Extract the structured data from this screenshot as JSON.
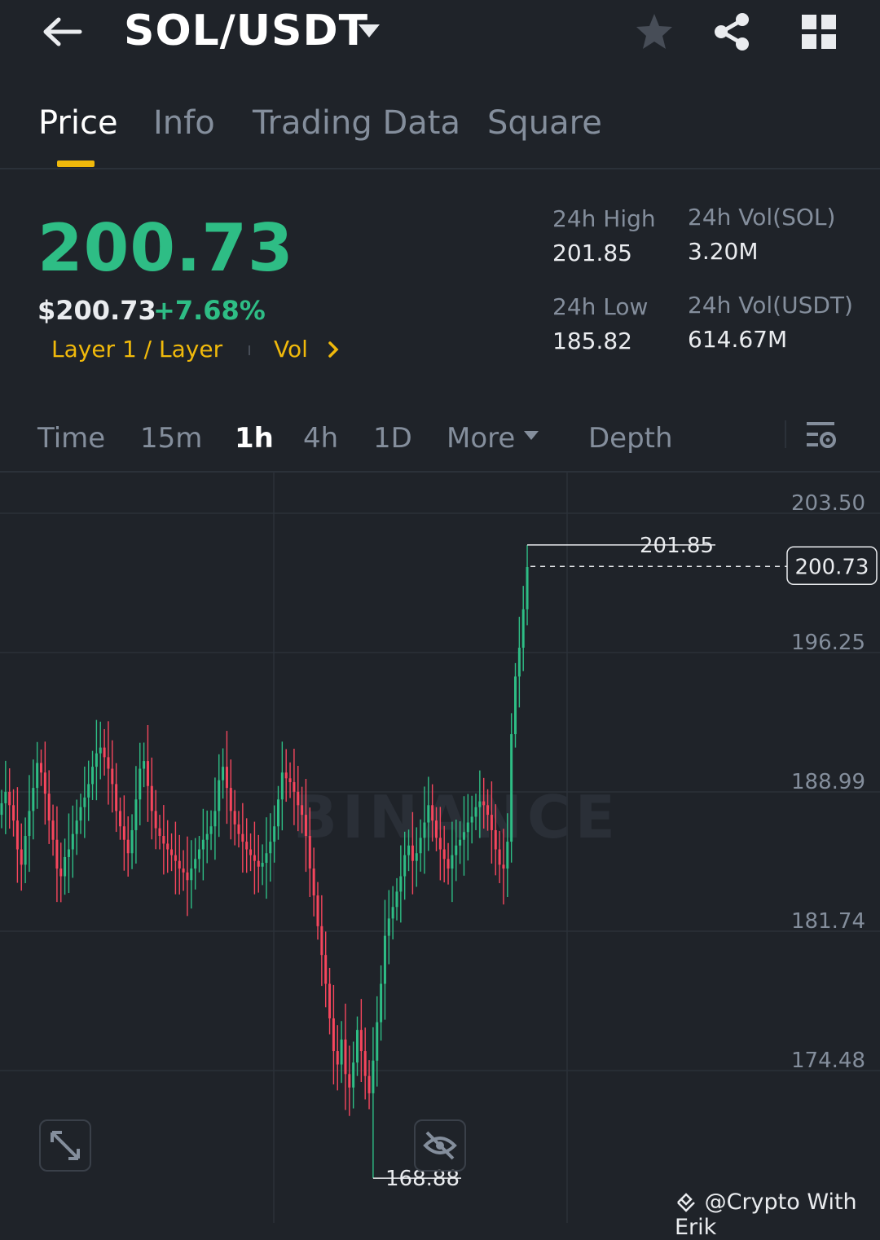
{
  "header": {
    "pair": "SOL/USDT",
    "icons": [
      "back-arrow-icon",
      "caret-down-icon",
      "star-icon",
      "share-icon",
      "grid-icon"
    ]
  },
  "tabs": [
    {
      "label": "Price",
      "active": true
    },
    {
      "label": "Info",
      "active": false
    },
    {
      "label": "Trading Data",
      "active": false
    },
    {
      "label": "Square",
      "active": false
    }
  ],
  "ticker": {
    "last_price": "200.73",
    "usd_price": "$200.73",
    "change_pct": "+7.68%",
    "tag_layer": "Layer 1 / Layer",
    "tag_vol": "Vol",
    "high_label": "24h High",
    "high_value": "201.85",
    "low_label": "24h Low",
    "low_value": "185.82",
    "vol_sol_label": "24h Vol(SOL)",
    "vol_sol_value": "3.20M",
    "vol_usdt_label": "24h Vol(USDT)",
    "vol_usdt_value": "614.67M"
  },
  "intervals": {
    "time": "Time",
    "m15": "15m",
    "h1": "1h",
    "h4": "4h",
    "d1": "1D",
    "more": "More",
    "depth": "Depth",
    "active": "1h"
  },
  "colors": {
    "up": "#2ebd85",
    "down": "#f6465d",
    "accent": "#f0b90b",
    "background": "#1f2329"
  },
  "chart_data": {
    "type": "candlestick",
    "y_ticks": [
      "203.50",
      "196.25",
      "188.99",
      "181.74",
      "174.48"
    ],
    "ylim": [
      167.23,
      203.5
    ],
    "current_price": "200.73",
    "high_marker": "201.85",
    "low_marker": "168.88",
    "watermark": "BINANCE",
    "closes": [
      188.4,
      189.0,
      188.3,
      187.5,
      186.0,
      185.2,
      186.7,
      188.0,
      189.2,
      190.5,
      190.0,
      188.9,
      187.5,
      186.5,
      185.0,
      184.6,
      185.6,
      186.0,
      186.8,
      187.5,
      188.2,
      188.7,
      189.4,
      190.3,
      191.0,
      191.3,
      190.8,
      190.2,
      189.4,
      188.0,
      187.2,
      186.5,
      185.8,
      187.0,
      188.6,
      190.2,
      190.6,
      189.3,
      188.0,
      187.1,
      186.7,
      186.3,
      186.0,
      185.7,
      185.4,
      185.0,
      184.8,
      184.4,
      185.0,
      185.5,
      186.0,
      186.5,
      186.8,
      187.2,
      188.0,
      189.6,
      190.3,
      189.2,
      188.0,
      187.3,
      186.8,
      186.4,
      186.0,
      185.7,
      185.4,
      185.1,
      185.3,
      185.8,
      186.4,
      187.2,
      188.6,
      190.0,
      189.7,
      189.5,
      189.0,
      188.3,
      187.8,
      186.7,
      185.0,
      183.6,
      182.0,
      180.5,
      179.0,
      177.2,
      175.5,
      174.8,
      176.1,
      174.3,
      173.6,
      174.9,
      176.6,
      175.5,
      174.2,
      173.3,
      175.0,
      177.0,
      179.0,
      181.5,
      182.4,
      183.0,
      183.8,
      184.6,
      185.7,
      186.2,
      185.4,
      185.8,
      186.6,
      187.4,
      188.3,
      187.5,
      186.6,
      186.0,
      185.5,
      185.0,
      185.7,
      186.2,
      186.5,
      186.9,
      187.4,
      187.7,
      188.2,
      188.5,
      188.3,
      187.8,
      187.0,
      186.0,
      185.2,
      185.0,
      186.4,
      192.0,
      195.0,
      196.5,
      198.5,
      200.7
    ]
  },
  "watermark_credit": "@Crypto With Erik"
}
